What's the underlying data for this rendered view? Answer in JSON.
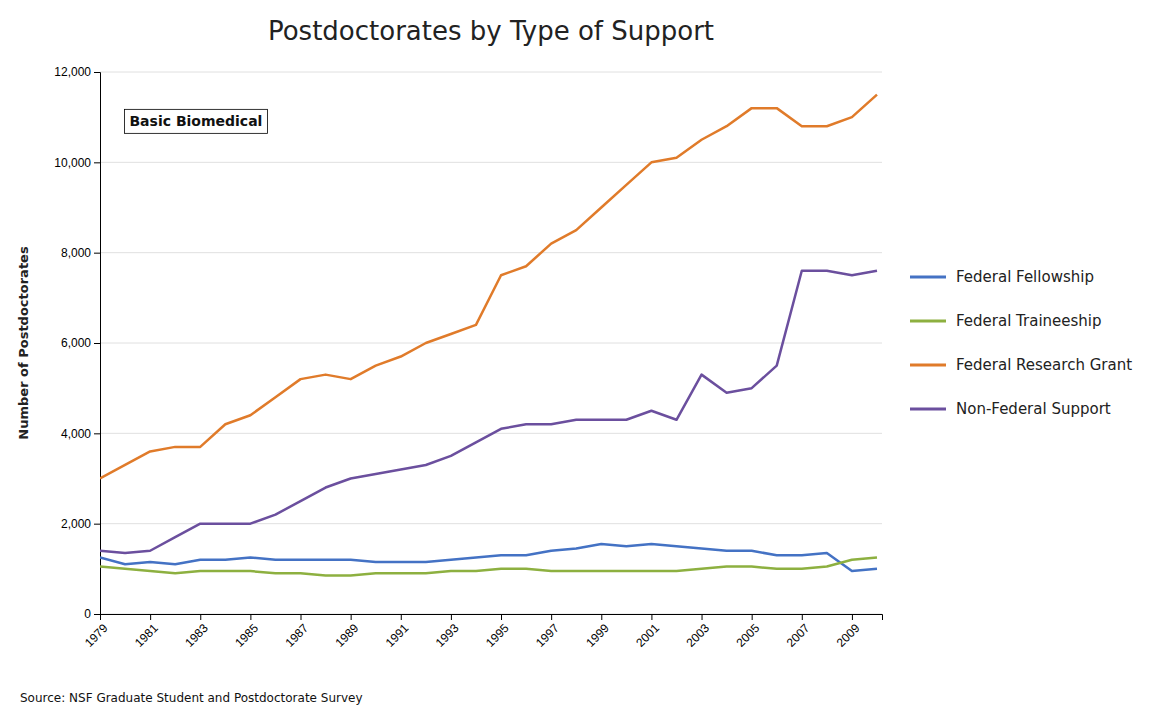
{
  "chart_data": {
    "type": "line",
    "title": "Postdoctorates by Type of Support",
    "y_label": "Number of Postdoctorates",
    "annotation": "Basic Biomedical",
    "source": "Source: NSF Graduate Student and Postdoctorate Survey",
    "x": [
      1979,
      1980,
      1981,
      1982,
      1983,
      1984,
      1985,
      1986,
      1987,
      1988,
      1989,
      1990,
      1991,
      1992,
      1993,
      1994,
      1995,
      1996,
      1997,
      1998,
      1999,
      2000,
      2001,
      2002,
      2003,
      2004,
      2005,
      2006,
      2007,
      2008,
      2009,
      2010
    ],
    "series": [
      {
        "name": "Federal Fellowship",
        "color": "#4472C4",
        "values": [
          1250,
          1100,
          1150,
          1100,
          1200,
          1200,
          1250,
          1200,
          1200,
          1200,
          1200,
          1150,
          1150,
          1150,
          1200,
          1250,
          1300,
          1300,
          1400,
          1450,
          1550,
          1500,
          1550,
          1500,
          1450,
          1400,
          1400,
          1300,
          1300,
          1350,
          950,
          1000
        ]
      },
      {
        "name": "Federal Traineeship",
        "color": "#8DB040",
        "values": [
          1050,
          1000,
          950,
          900,
          950,
          950,
          950,
          900,
          900,
          850,
          850,
          900,
          900,
          900,
          950,
          950,
          1000,
          1000,
          950,
          950,
          950,
          950,
          950,
          950,
          1000,
          1050,
          1050,
          1000,
          1000,
          1050,
          1200,
          1250
        ]
      },
      {
        "name": "Federal Research Grant",
        "color": "#E07B2A",
        "values": [
          3000,
          3300,
          3600,
          3700,
          3700,
          4200,
          4400,
          4800,
          5200,
          5300,
          5200,
          5500,
          5700,
          6000,
          6200,
          6400,
          7500,
          7700,
          8200,
          8500,
          9000,
          9500,
          10000,
          10100,
          10500,
          10800,
          11200,
          11200,
          10800,
          10800,
          11000,
          11500
        ]
      },
      {
        "name": "Non-Federal Support",
        "color": "#6B4F9E",
        "values": [
          1400,
          1350,
          1400,
          1700,
          2000,
          2000,
          2000,
          2200,
          2500,
          2800,
          3000,
          3100,
          3200,
          3300,
          3500,
          3800,
          4100,
          4200,
          4200,
          4300,
          4300,
          4300,
          4500,
          4300,
          5300,
          4900,
          5000,
          5500,
          7600,
          7600,
          7500,
          7600
        ]
      }
    ],
    "xlim": [
      1979,
      2010.2
    ],
    "xticks": [
      1979,
      1981,
      1983,
      1985,
      1987,
      1989,
      1991,
      1993,
      1995,
      1997,
      1999,
      2001,
      2003,
      2005,
      2007,
      2009
    ],
    "ylim": [
      0,
      12000
    ],
    "yticks": [
      0,
      {
        "value": 2000,
        "label": "2,000"
      },
      {
        "value": 4000,
        "label": "4,000"
      },
      {
        "value": 6000,
        "label": "6,000"
      },
      {
        "value": 8000,
        "label": "8,000"
      },
      {
        "value": 10000,
        "label": "10,000"
      },
      {
        "value": 12000,
        "label": "12,000"
      }
    ],
    "grid": true,
    "legend": "right"
  }
}
